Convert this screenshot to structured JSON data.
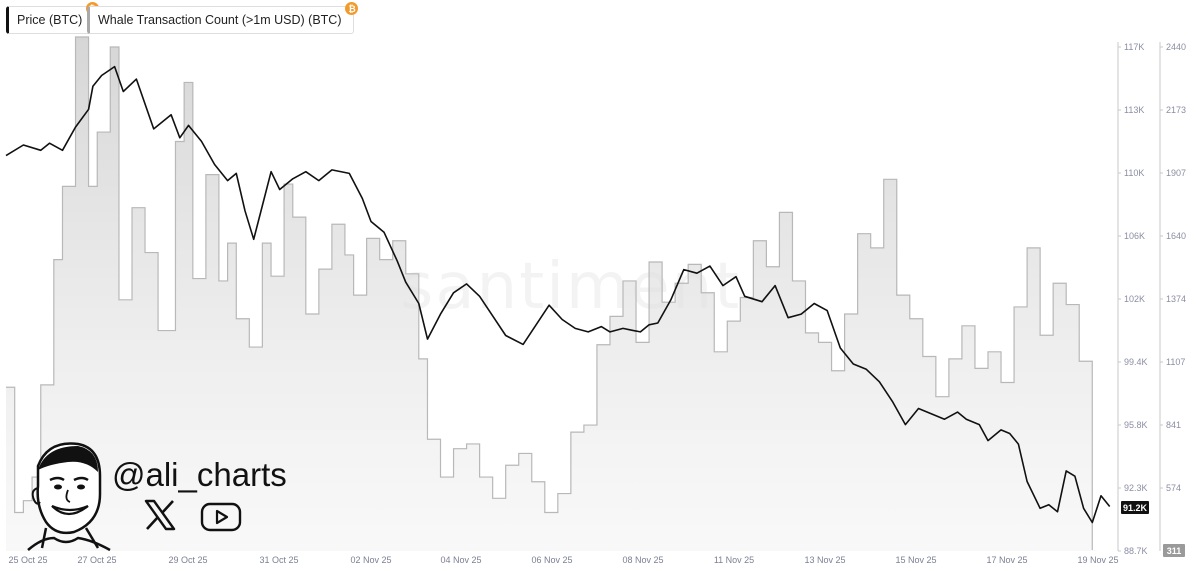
{
  "legend": {
    "price_label": "Price (BTC)",
    "whale_label": "Whale Transaction Count (>1m USD) (BTC)",
    "coin_symbol": "₿"
  },
  "watermark": "santiment",
  "branding": {
    "handle": "@ali_charts",
    "icons": [
      "x-logo-icon",
      "youtube-icon"
    ]
  },
  "colors": {
    "price_line": "#111111",
    "whale_area": "#d4d4d4",
    "whale_line": "#b8b8b8",
    "badge": "#f39a2c"
  },
  "chart_data": {
    "type": "line",
    "x_labels": [
      "25 Oct 25",
      "27 Oct 25",
      "29 Oct 25",
      "31 Oct 25",
      "02 Nov 25",
      "04 Nov 25",
      "06 Nov 25",
      "08 Nov 25",
      "11 Nov 25",
      "13 Nov 25",
      "15 Nov 25",
      "17 Nov 25",
      "19 Nov 25"
    ],
    "price_axis": {
      "ticks": [
        "117K",
        "113K",
        "110K",
        "106K",
        "102K",
        "99.4K",
        "95.8K",
        "92.3K",
        "88.7K"
      ],
      "min": 88700,
      "max": 117000
    },
    "whale_axis": {
      "ticks": [
        "2440",
        "2173",
        "1907",
        "1640",
        "1374",
        "1107",
        "841",
        "574",
        "311"
      ],
      "min": 307,
      "max": 2440
    },
    "current_price_label": "91.2K",
    "current_whale_label": "311",
    "series": [
      {
        "name": "Price (BTC)",
        "axis": "price",
        "style": "line",
        "points": [
          [
            25.0,
            110900
          ],
          [
            25.4,
            111500
          ],
          [
            25.8,
            111200
          ],
          [
            26.0,
            111600
          ],
          [
            26.3,
            111200
          ],
          [
            26.6,
            112500
          ],
          [
            26.9,
            113500
          ],
          [
            27.0,
            114800
          ],
          [
            27.2,
            115400
          ],
          [
            27.5,
            115900
          ],
          [
            27.7,
            114500
          ],
          [
            28.0,
            115200
          ],
          [
            28.4,
            112400
          ],
          [
            28.8,
            113200
          ],
          [
            29.0,
            111900
          ],
          [
            29.2,
            112600
          ],
          [
            29.5,
            111700
          ],
          [
            29.8,
            110400
          ],
          [
            30.1,
            109500
          ],
          [
            30.3,
            109900
          ],
          [
            30.5,
            107800
          ],
          [
            30.7,
            106200
          ],
          [
            30.9,
            108100
          ],
          [
            31.1,
            110000
          ],
          [
            31.3,
            109000
          ],
          [
            31.6,
            109600
          ],
          [
            31.9,
            110000
          ],
          [
            32.2,
            109500
          ],
          [
            32.5,
            110100
          ],
          [
            32.9,
            109900
          ],
          [
            33.2,
            108500
          ],
          [
            33.4,
            107200
          ],
          [
            33.7,
            106600
          ],
          [
            34.0,
            105000
          ],
          [
            34.2,
            103800
          ],
          [
            34.5,
            102600
          ],
          [
            34.7,
            100600
          ],
          [
            35.0,
            102000
          ],
          [
            35.3,
            103200
          ],
          [
            35.6,
            103700
          ],
          [
            35.9,
            103000
          ],
          [
            36.2,
            101900
          ],
          [
            36.5,
            100800
          ],
          [
            36.9,
            100300
          ],
          [
            37.2,
            101400
          ],
          [
            37.5,
            102500
          ],
          [
            37.8,
            101700
          ],
          [
            38.1,
            101200
          ],
          [
            38.4,
            101000
          ],
          [
            38.7,
            101300
          ],
          [
            38.9,
            101000
          ],
          [
            39.2,
            101200
          ],
          [
            39.4,
            101100
          ],
          [
            39.6,
            101000
          ],
          [
            39.8,
            101400
          ],
          [
            40.0,
            101500
          ],
          [
            40.3,
            102800
          ],
          [
            40.6,
            104500
          ],
          [
            40.9,
            104300
          ],
          [
            41.2,
            104700
          ],
          [
            41.5,
            103600
          ],
          [
            41.8,
            104100
          ],
          [
            42.0,
            103000
          ],
          [
            42.4,
            102700
          ],
          [
            42.7,
            103600
          ],
          [
            43.0,
            101800
          ],
          [
            43.3,
            102000
          ],
          [
            43.6,
            102600
          ],
          [
            43.9,
            102200
          ],
          [
            44.2,
            100100
          ],
          [
            44.5,
            99200
          ],
          [
            44.8,
            98900
          ],
          [
            45.1,
            98200
          ],
          [
            45.4,
            97100
          ],
          [
            45.7,
            95800
          ],
          [
            46.0,
            96700
          ],
          [
            46.3,
            96400
          ],
          [
            46.6,
            96100
          ],
          [
            46.9,
            96500
          ],
          [
            47.1,
            96100
          ],
          [
            47.4,
            95800
          ],
          [
            47.6,
            94900
          ],
          [
            47.9,
            95500
          ],
          [
            48.1,
            95300
          ],
          [
            48.3,
            94700
          ],
          [
            48.5,
            92600
          ],
          [
            48.8,
            91100
          ],
          [
            49.0,
            91300
          ],
          [
            49.2,
            90900
          ],
          [
            49.4,
            93200
          ],
          [
            49.6,
            92900
          ],
          [
            49.8,
            91100
          ],
          [
            50.0,
            90300
          ],
          [
            50.2,
            91800
          ],
          [
            50.4,
            91200
          ]
        ]
      },
      {
        "name": "Whale Transaction Count (>1m USD) (BTC)",
        "axis": "whale",
        "style": "step-area",
        "points": [
          [
            25.0,
            1000
          ],
          [
            25.2,
            470
          ],
          [
            25.4,
            520
          ],
          [
            25.6,
            620
          ],
          [
            25.8,
            1010
          ],
          [
            26.1,
            1540
          ],
          [
            26.3,
            1850
          ],
          [
            26.6,
            2520
          ],
          [
            26.9,
            1850
          ],
          [
            27.1,
            2080
          ],
          [
            27.4,
            2440
          ],
          [
            27.6,
            1370
          ],
          [
            27.9,
            1760
          ],
          [
            28.2,
            1570
          ],
          [
            28.5,
            1240
          ],
          [
            28.9,
            2040
          ],
          [
            29.1,
            2290
          ],
          [
            29.3,
            1460
          ],
          [
            29.6,
            1900
          ],
          [
            29.9,
            1450
          ],
          [
            30.1,
            1610
          ],
          [
            30.3,
            1290
          ],
          [
            30.6,
            1170
          ],
          [
            30.9,
            1610
          ],
          [
            31.1,
            1470
          ],
          [
            31.4,
            1860
          ],
          [
            31.6,
            1720
          ],
          [
            31.9,
            1310
          ],
          [
            32.2,
            1500
          ],
          [
            32.5,
            1690
          ],
          [
            32.8,
            1560
          ],
          [
            33.0,
            1390
          ],
          [
            33.3,
            1630
          ],
          [
            33.6,
            1540
          ],
          [
            33.9,
            1620
          ],
          [
            34.2,
            1480
          ],
          [
            34.5,
            1120
          ],
          [
            34.7,
            780
          ],
          [
            35.0,
            620
          ],
          [
            35.3,
            740
          ],
          [
            35.6,
            760
          ],
          [
            35.9,
            620
          ],
          [
            36.2,
            530
          ],
          [
            36.5,
            670
          ],
          [
            36.8,
            720
          ],
          [
            37.1,
            600
          ],
          [
            37.4,
            470
          ],
          [
            37.7,
            550
          ],
          [
            38.0,
            810
          ],
          [
            38.3,
            840
          ],
          [
            38.6,
            1180
          ],
          [
            38.9,
            1300
          ],
          [
            39.2,
            1450
          ],
          [
            39.5,
            1190
          ],
          [
            39.8,
            1530
          ],
          [
            40.1,
            1360
          ],
          [
            40.4,
            1440
          ],
          [
            40.7,
            1520
          ],
          [
            41.0,
            1400
          ],
          [
            41.3,
            1150
          ],
          [
            41.6,
            1280
          ],
          [
            41.9,
            1380
          ],
          [
            42.2,
            1620
          ],
          [
            42.5,
            1510
          ],
          [
            42.8,
            1740
          ],
          [
            43.1,
            1450
          ],
          [
            43.4,
            1230
          ],
          [
            43.7,
            1190
          ],
          [
            44.0,
            1070
          ],
          [
            44.3,
            1310
          ],
          [
            44.6,
            1650
          ],
          [
            44.9,
            1590
          ],
          [
            45.2,
            1880
          ],
          [
            45.5,
            1390
          ],
          [
            45.8,
            1290
          ],
          [
            46.1,
            1130
          ],
          [
            46.4,
            960
          ],
          [
            46.7,
            1120
          ],
          [
            47.0,
            1260
          ],
          [
            47.3,
            1080
          ],
          [
            47.6,
            1150
          ],
          [
            47.9,
            1020
          ],
          [
            48.2,
            1340
          ],
          [
            48.5,
            1590
          ],
          [
            48.8,
            1220
          ],
          [
            49.1,
            1440
          ],
          [
            49.4,
            1350
          ],
          [
            49.7,
            1110
          ],
          [
            50.0,
            311
          ]
        ]
      }
    ]
  }
}
